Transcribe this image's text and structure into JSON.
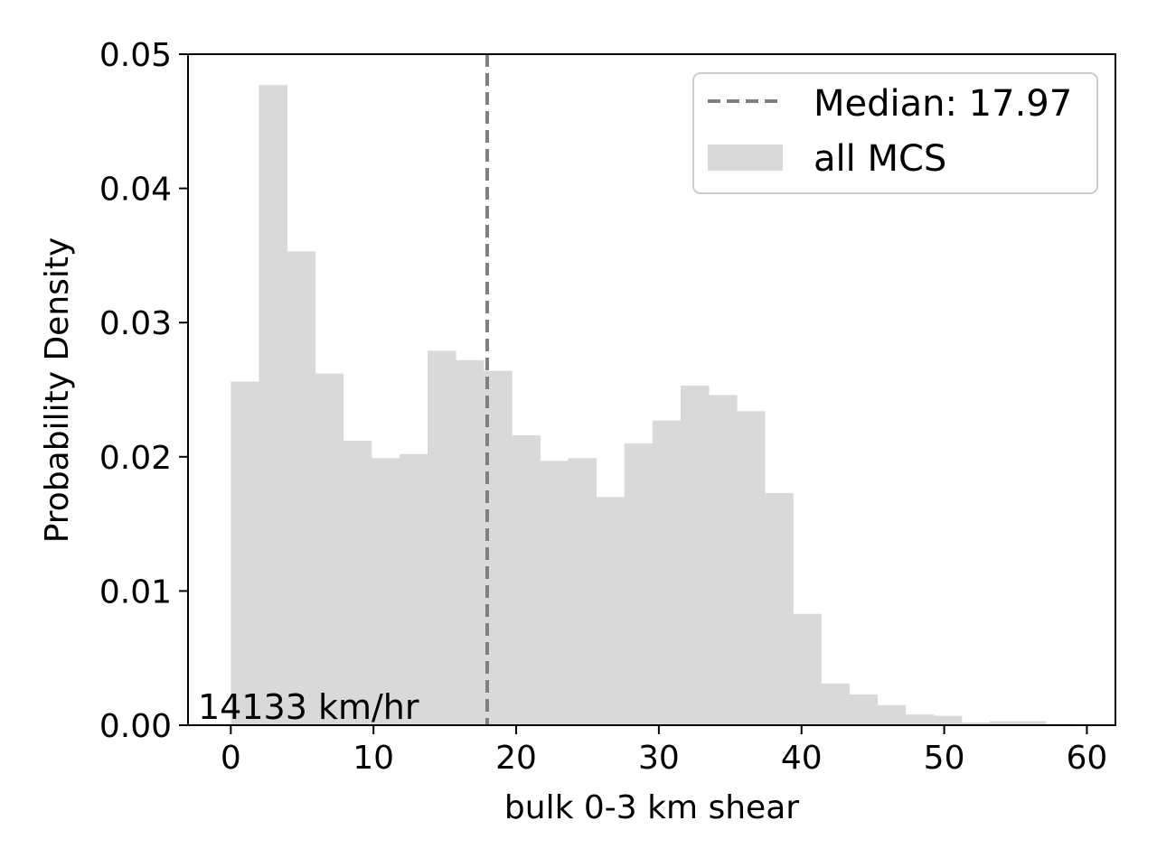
{
  "chart_data": {
    "type": "bar",
    "subtype": "histogram",
    "xlabel": "bulk 0-3 km shear",
    "ylabel": "Probability Density",
    "xlim": [
      -3,
      62
    ],
    "ylim": [
      0,
      0.05
    ],
    "xticks": [
      0,
      10,
      20,
      30,
      40,
      50,
      60
    ],
    "yticks": [
      0.0,
      0.01,
      0.02,
      0.03,
      0.04,
      0.05
    ],
    "xtick_labels": [
      "0",
      "10",
      "20",
      "30",
      "40",
      "50",
      "60"
    ],
    "ytick_labels": [
      "0.00",
      "0.01",
      "0.02",
      "0.03",
      "0.04",
      "0.05"
    ],
    "bin_edges": [
      0,
      1.97,
      3.94,
      5.91,
      7.88,
      9.85,
      11.82,
      13.79,
      15.76,
      17.73,
      19.7,
      21.67,
      23.64,
      25.61,
      27.58,
      29.55,
      31.52,
      33.49,
      35.46,
      37.43,
      39.4,
      41.37,
      43.34,
      45.31,
      47.28,
      49.25,
      51.22,
      53.19,
      55.16,
      57.13,
      59.1
    ],
    "series": [
      {
        "name": "all MCS",
        "color": "#d9d9d9",
        "values": [
          0.0256,
          0.0477,
          0.0353,
          0.0262,
          0.0212,
          0.0199,
          0.0202,
          0.0279,
          0.0272,
          0.0264,
          0.0216,
          0.0197,
          0.0199,
          0.017,
          0.021,
          0.0227,
          0.0253,
          0.0246,
          0.0234,
          0.0173,
          0.0083,
          0.0031,
          0.0023,
          0.0015,
          0.0008,
          0.0007,
          0.0002,
          0.0003,
          0.0003,
          0.0001
        ]
      }
    ],
    "median": {
      "label": "Median: 17.97",
      "value": 17.97,
      "color": "#808080",
      "style": "dashed"
    },
    "annotation": "14133 km/hr",
    "legend_placement": "upper-right",
    "grid": false
  }
}
